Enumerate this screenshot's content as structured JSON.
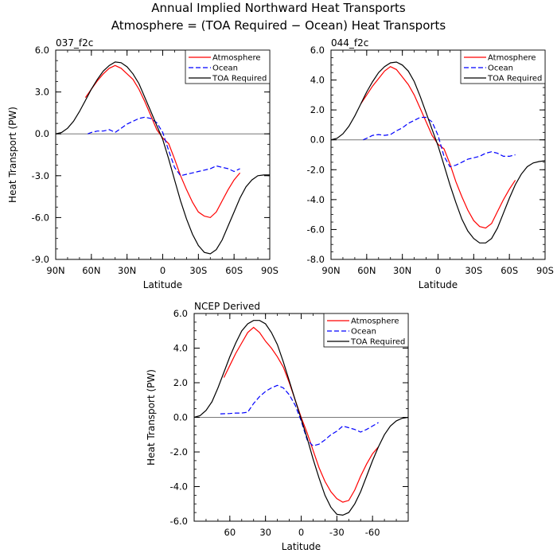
{
  "figure": {
    "title_line1": "Annual Implied Northward Heat Transports",
    "title_line2": "Atmosphere = (TOA Required − Ocean) Heat Transports"
  },
  "chart_data": [
    {
      "type": "line",
      "subtitle": "037_f2c",
      "xlabel": "Latitude",
      "ylabel": "Heat Transport (PW)",
      "xlim": [
        90,
        -90
      ],
      "ylim": [
        -9.0,
        6.0
      ],
      "x_ticks": [
        90,
        60,
        30,
        0,
        -30,
        -60,
        -90
      ],
      "x_tick_labels": [
        "90N",
        "60N",
        "30N",
        "0",
        "30S",
        "60S",
        "90S"
      ],
      "y_ticks": [
        6.0,
        3.0,
        0.0,
        -3.0,
        -6.0,
        -9.0
      ],
      "y_tick_labels": [
        "6.0",
        "3.0",
        "0.0",
        "-3.0",
        "-6.0",
        "-9.0"
      ],
      "zero_line": true,
      "legend_position": "top-right",
      "series": [
        {
          "name": "Atmosphere",
          "color": "#ff0000",
          "dash": "solid",
          "x": [
            65,
            60,
            55,
            50,
            45,
            40,
            35,
            30,
            25,
            20,
            15,
            10,
            5,
            0,
            -5,
            -10,
            -15,
            -20,
            -25,
            -30,
            -35,
            -40,
            -45,
            -50,
            -55,
            -60,
            -65
          ],
          "y": [
            2.6,
            3.2,
            3.8,
            4.3,
            4.7,
            4.9,
            4.7,
            4.3,
            3.9,
            3.2,
            2.3,
            1.3,
            0.3,
            -0.3,
            -0.7,
            -1.8,
            -3.0,
            -4.0,
            -4.9,
            -5.6,
            -5.9,
            -6.0,
            -5.6,
            -4.8,
            -4.0,
            -3.3,
            -2.8
          ]
        },
        {
          "name": "Ocean",
          "color": "#0000ff",
          "dash": "dashed",
          "x": [
            63,
            60,
            55,
            50,
            45,
            40,
            35,
            30,
            25,
            20,
            15,
            10,
            5,
            0,
            -5,
            -10,
            -15,
            -20,
            -25,
            -30,
            -35,
            -40,
            -45,
            -50,
            -55,
            -60,
            -65
          ],
          "y": [
            0.0,
            0.1,
            0.2,
            0.2,
            0.3,
            0.1,
            0.4,
            0.7,
            0.9,
            1.1,
            1.2,
            1.1,
            0.8,
            0.1,
            -1.2,
            -2.4,
            -3.0,
            -2.9,
            -2.8,
            -2.7,
            -2.6,
            -2.5,
            -2.3,
            -2.4,
            -2.5,
            -2.7,
            -2.5
          ]
        },
        {
          "name": "TOA Required",
          "color": "#000000",
          "dash": "solid",
          "x": [
            90,
            85,
            80,
            75,
            70,
            65,
            60,
            55,
            50,
            45,
            40,
            35,
            30,
            25,
            20,
            15,
            10,
            5,
            0,
            -5,
            -10,
            -15,
            -20,
            -25,
            -30,
            -35,
            -40,
            -45,
            -50,
            -55,
            -60,
            -65,
            -70,
            -75,
            -80,
            -85,
            -90
          ],
          "y": [
            0.0,
            0.1,
            0.4,
            0.9,
            1.6,
            2.4,
            3.2,
            3.9,
            4.5,
            4.9,
            5.15,
            5.1,
            4.8,
            4.3,
            3.6,
            2.6,
            1.6,
            0.6,
            -0.4,
            -1.8,
            -3.3,
            -4.8,
            -6.1,
            -7.2,
            -8.0,
            -8.5,
            -8.6,
            -8.3,
            -7.6,
            -6.6,
            -5.6,
            -4.6,
            -3.8,
            -3.3,
            -3.0,
            -2.95,
            -2.95
          ]
        }
      ]
    },
    {
      "type": "line",
      "subtitle": "044_f2c",
      "xlabel": "Latitude",
      "ylabel": "",
      "xlim": [
        90,
        -90
      ],
      "ylim": [
        -8.0,
        6.0
      ],
      "x_ticks": [
        90,
        60,
        30,
        0,
        -30,
        -60,
        -90
      ],
      "x_tick_labels": [
        "90N",
        "60N",
        "30N",
        "0",
        "30S",
        "60S",
        "90S"
      ],
      "y_ticks": [
        6.0,
        4.0,
        2.0,
        0.0,
        -2.0,
        -4.0,
        -6.0,
        -8.0
      ],
      "y_tick_labels": [
        "6.0",
        "4.0",
        "2.0",
        "0.0",
        "-2.0",
        "-4.0",
        "-6.0",
        "-8.0"
      ],
      "zero_line": true,
      "legend_position": "top-right",
      "series": [
        {
          "name": "Atmosphere",
          "color": "#ff0000",
          "dash": "solid",
          "x": [
            65,
            60,
            55,
            50,
            45,
            40,
            35,
            30,
            25,
            20,
            15,
            10,
            5,
            0,
            -5,
            -10,
            -15,
            -20,
            -25,
            -30,
            -35,
            -40,
            -45,
            -50,
            -55,
            -60,
            -65
          ],
          "y": [
            2.4,
            3.0,
            3.6,
            4.1,
            4.6,
            4.9,
            4.7,
            4.2,
            3.7,
            3.0,
            2.1,
            1.2,
            0.3,
            -0.3,
            -0.6,
            -1.6,
            -2.8,
            -3.8,
            -4.7,
            -5.4,
            -5.8,
            -5.9,
            -5.6,
            -4.8,
            -4.0,
            -3.3,
            -2.7
          ]
        },
        {
          "name": "Ocean",
          "color": "#0000ff",
          "dash": "dashed",
          "x": [
            63,
            60,
            55,
            50,
            45,
            40,
            35,
            30,
            25,
            20,
            15,
            10,
            5,
            0,
            -5,
            -10,
            -15,
            -20,
            -25,
            -30,
            -35,
            -40,
            -45,
            -50,
            -55,
            -60,
            -65
          ],
          "y": [
            0.0,
            0.1,
            0.3,
            0.35,
            0.3,
            0.35,
            0.6,
            0.8,
            1.1,
            1.3,
            1.5,
            1.5,
            1.2,
            0.3,
            -1.1,
            -1.8,
            -1.7,
            -1.5,
            -1.3,
            -1.2,
            -1.1,
            -0.9,
            -0.8,
            -0.9,
            -1.1,
            -1.1,
            -1.0
          ]
        },
        {
          "name": "TOA Required",
          "color": "#000000",
          "dash": "solid",
          "x": [
            90,
            85,
            80,
            75,
            70,
            65,
            60,
            55,
            50,
            45,
            40,
            35,
            30,
            25,
            20,
            15,
            10,
            5,
            0,
            -5,
            -10,
            -15,
            -20,
            -25,
            -30,
            -35,
            -40,
            -45,
            -50,
            -55,
            -60,
            -65,
            -70,
            -75,
            -80,
            -85,
            -90
          ],
          "y": [
            0.0,
            0.1,
            0.4,
            0.9,
            1.6,
            2.4,
            3.2,
            3.9,
            4.5,
            4.9,
            5.15,
            5.2,
            5.0,
            4.6,
            3.9,
            2.9,
            1.8,
            0.7,
            -0.4,
            -1.7,
            -3.0,
            -4.2,
            -5.3,
            -6.1,
            -6.6,
            -6.9,
            -6.9,
            -6.6,
            -5.9,
            -4.9,
            -3.9,
            -3.0,
            -2.3,
            -1.8,
            -1.55,
            -1.45,
            -1.4
          ]
        }
      ]
    },
    {
      "type": "line",
      "subtitle": "NCEP Derived",
      "xlabel": "Latitude",
      "ylabel": "Heat Transport (PW)",
      "xlim": [
        90,
        -90
      ],
      "ylim": [
        -6.0,
        6.0
      ],
      "x_ticks": [
        60,
        30,
        0,
        -30,
        -60
      ],
      "x_tick_labels": [
        "60",
        "30",
        "0",
        "-30",
        "-60"
      ],
      "y_ticks": [
        6.0,
        4.0,
        2.0,
        0.0,
        -2.0,
        -4.0,
        -6.0
      ],
      "y_tick_labels": [
        "6.0",
        "4.0",
        "2.0",
        "0.0",
        "-2.0",
        "-4.0",
        "-6.0"
      ],
      "zero_line": true,
      "legend_position": "top-right",
      "series": [
        {
          "name": "Atmosphere",
          "color": "#ff0000",
          "dash": "solid",
          "x": [
            65,
            60,
            55,
            50,
            45,
            40,
            35,
            30,
            25,
            20,
            15,
            10,
            5,
            0,
            -5,
            -10,
            -15,
            -20,
            -25,
            -30,
            -35,
            -40,
            -45,
            -50,
            -55,
            -60,
            -65
          ],
          "y": [
            2.3,
            3.0,
            3.7,
            4.3,
            4.9,
            5.2,
            4.9,
            4.4,
            4.0,
            3.5,
            2.9,
            2.0,
            1.0,
            0.0,
            -0.9,
            -1.9,
            -2.9,
            -3.7,
            -4.3,
            -4.7,
            -4.9,
            -4.8,
            -4.2,
            -3.4,
            -2.7,
            -2.1,
            -1.7
          ]
        },
        {
          "name": "Ocean",
          "color": "#0000ff",
          "dash": "dashed",
          "x": [
            68,
            60,
            55,
            50,
            45,
            40,
            35,
            30,
            25,
            20,
            15,
            10,
            5,
            0,
            -5,
            -10,
            -15,
            -20,
            -25,
            -30,
            -35,
            -40,
            -45,
            -50,
            -55,
            -60,
            -65
          ],
          "y": [
            0.2,
            0.22,
            0.25,
            0.25,
            0.3,
            0.8,
            1.2,
            1.5,
            1.7,
            1.85,
            1.7,
            1.3,
            0.7,
            -0.2,
            -1.3,
            -1.65,
            -1.55,
            -1.3,
            -1.0,
            -0.8,
            -0.5,
            -0.6,
            -0.7,
            -0.85,
            -0.7,
            -0.5,
            -0.3
          ]
        },
        {
          "name": "TOA Required",
          "color": "#000000",
          "dash": "solid",
          "x": [
            90,
            85,
            80,
            75,
            70,
            65,
            60,
            55,
            50,
            45,
            40,
            35,
            30,
            25,
            20,
            15,
            10,
            5,
            0,
            -5,
            -10,
            -15,
            -20,
            -25,
            -30,
            -35,
            -40,
            -45,
            -50,
            -55,
            -60,
            -65,
            -70,
            -75,
            -80,
            -85,
            -90
          ],
          "y": [
            0.0,
            0.1,
            0.4,
            0.9,
            1.7,
            2.6,
            3.5,
            4.3,
            5.0,
            5.4,
            5.6,
            5.6,
            5.4,
            4.9,
            4.2,
            3.2,
            2.1,
            1.0,
            -0.1,
            -1.2,
            -2.4,
            -3.5,
            -4.5,
            -5.2,
            -5.6,
            -5.65,
            -5.5,
            -5.0,
            -4.3,
            -3.4,
            -2.5,
            -1.7,
            -1.0,
            -0.5,
            -0.2,
            -0.05,
            0.0
          ]
        }
      ]
    }
  ]
}
